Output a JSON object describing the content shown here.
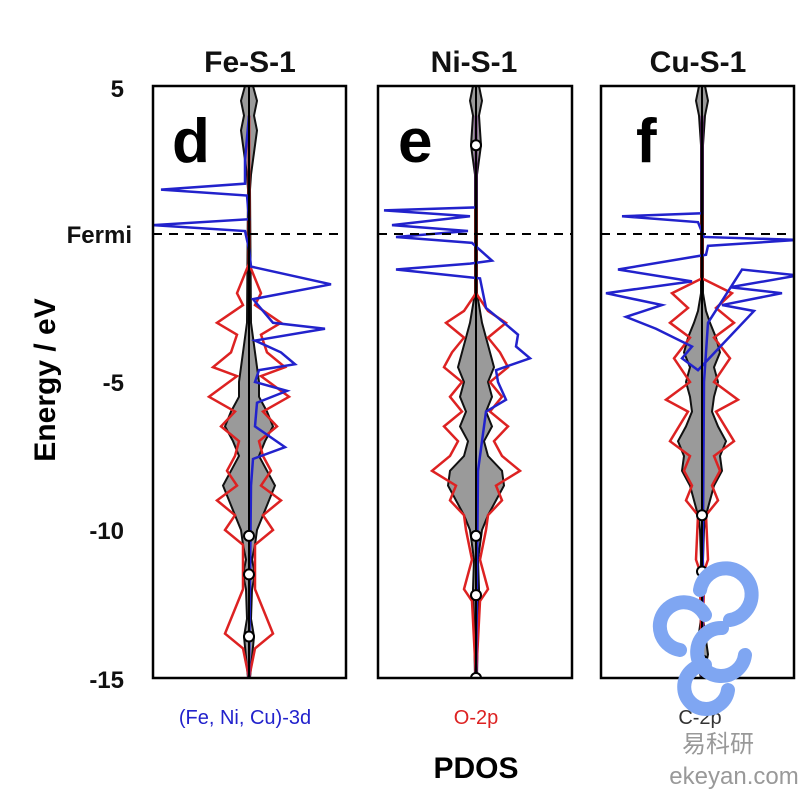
{
  "chart_data": {
    "type": "line",
    "ylabel": "Energy / eV",
    "xlabel": "PDOS",
    "ylim": [
      -15,
      5
    ],
    "yticks": [
      5,
      -5,
      -10,
      -15
    ],
    "fermi_label": "Fermi",
    "fermi_energy": 0,
    "series_legend": [
      {
        "name": "(Fe, Ni, Cu)-3d",
        "color": "#2222cc"
      },
      {
        "name": "O-2p",
        "color": "#dd2222"
      },
      {
        "name": "C-2p",
        "color": "#333333"
      }
    ],
    "panels": [
      {
        "title": "Fe-S-1",
        "letter": "d",
        "d3": [
          [
            4,
            0
          ],
          [
            2.5,
            -0.2
          ],
          [
            1.7,
            -0.2
          ],
          [
            1.5,
            -4.4
          ],
          [
            1.3,
            -0.1
          ],
          [
            0.5,
            0
          ],
          [
            0.3,
            -4.8
          ],
          [
            0.1,
            -0.2
          ],
          [
            -0.5,
            0
          ],
          [
            -1.1,
            0.1
          ],
          [
            -1.7,
            4.1
          ],
          [
            -2.2,
            0.2
          ],
          [
            -3,
            1.2
          ],
          [
            -3.2,
            3.8
          ],
          [
            -3.6,
            0.3
          ],
          [
            -4,
            1.6
          ],
          [
            -4.4,
            2.3
          ],
          [
            -4.6,
            0.5
          ],
          [
            -5,
            0.3
          ],
          [
            -5.3,
            1.9
          ],
          [
            -5.7,
            0.4
          ],
          [
            -6.5,
            0.3
          ],
          [
            -7.2,
            1.8
          ],
          [
            -7.6,
            0.2
          ],
          [
            -8.5,
            0.1
          ],
          [
            -15,
            0
          ]
        ],
        "o2p": [
          [
            4,
            0
          ],
          [
            -1,
            0
          ],
          [
            -2,
            0.6
          ],
          [
            -2.4,
            0.3
          ],
          [
            -3,
            1.6
          ],
          [
            -3.4,
            0.6
          ],
          [
            -4,
            0.9
          ],
          [
            -4.5,
            1.8
          ],
          [
            -4.8,
            0.6
          ],
          [
            -5,
            1.0
          ],
          [
            -5.5,
            2.0
          ],
          [
            -6,
            0.7
          ],
          [
            -6.5,
            1.4
          ],
          [
            -7,
            0.5
          ],
          [
            -7.5,
            0.7
          ],
          [
            -8,
            1.1
          ],
          [
            -8.5,
            0.6
          ],
          [
            -9,
            1.6
          ],
          [
            -9.5,
            0.7
          ],
          [
            -10,
            1.2
          ],
          [
            -10.5,
            0.3
          ],
          [
            -12,
            0.3
          ],
          [
            -13.5,
            1.2
          ],
          [
            -14,
            0.3
          ],
          [
            -15,
            0
          ]
        ],
        "c2p": [
          [
            5,
            0.2
          ],
          [
            4.5,
            0.4
          ],
          [
            4,
            0.25
          ],
          [
            3.5,
            0.4
          ],
          [
            3,
            0.3
          ],
          [
            2.5,
            0.2
          ],
          [
            2,
            0.1
          ],
          [
            1.5,
            0.05
          ],
          [
            -3,
            0.1
          ],
          [
            -4,
            0.3
          ],
          [
            -5,
            0.5
          ],
          [
            -5.5,
            0.5
          ],
          [
            -6,
            0.9
          ],
          [
            -6.5,
            1.2
          ],
          [
            -7,
            0.8
          ],
          [
            -7.5,
            0.5
          ],
          [
            -8,
            0.9
          ],
          [
            -8.5,
            1.3
          ],
          [
            -9,
            1.0
          ],
          [
            -9.5,
            0.7
          ],
          [
            -10,
            0.4
          ],
          [
            -10.5,
            0.3
          ],
          [
            -11,
            0.15
          ],
          [
            -11.5,
            0.3
          ],
          [
            -12,
            0.15
          ],
          [
            -13,
            0.1
          ],
          [
            -13.6,
            0.25
          ],
          [
            -15,
            0.05
          ]
        ],
        "c2p_markers": [
          -10.2,
          -11.5,
          -13.6
        ]
      },
      {
        "title": "Ni-S-1",
        "letter": "e",
        "d3": [
          [
            4,
            0
          ],
          [
            0.9,
            0
          ],
          [
            0.8,
            -4.6
          ],
          [
            0.6,
            -0.3
          ],
          [
            0.3,
            -4.2
          ],
          [
            0.1,
            -0.4
          ],
          [
            -0.1,
            -4.0
          ],
          [
            -0.3,
            -0.2
          ],
          [
            -0.9,
            0.8
          ],
          [
            -1,
            -0.3
          ],
          [
            -1.2,
            -4.0
          ],
          [
            -1.5,
            0.2
          ],
          [
            -2.5,
            0.5
          ],
          [
            -3,
            1.4
          ],
          [
            -3.4,
            2.1
          ],
          [
            -3.8,
            2.0
          ],
          [
            -4.2,
            2.7
          ],
          [
            -4.6,
            1.0
          ],
          [
            -5,
            1.1
          ],
          [
            -5.6,
            1.5
          ],
          [
            -6,
            0.5
          ],
          [
            -7,
            0.3
          ],
          [
            -8,
            0.1
          ],
          [
            -15,
            0
          ]
        ],
        "o2p": [
          [
            4,
            0
          ],
          [
            -2,
            0
          ],
          [
            -2.6,
            0.6
          ],
          [
            -3,
            1.5
          ],
          [
            -3.5,
            0.6
          ],
          [
            -4,
            1.2
          ],
          [
            -4.5,
            1.6
          ],
          [
            -5,
            0.7
          ],
          [
            -5.5,
            1.3
          ],
          [
            -6,
            0.7
          ],
          [
            -6.5,
            1.6
          ],
          [
            -7,
            0.9
          ],
          [
            -7.5,
            1.3
          ],
          [
            -8,
            2.2
          ],
          [
            -8.5,
            1.0
          ],
          [
            -9,
            1.3
          ],
          [
            -9.5,
            0.6
          ],
          [
            -10,
            0.5
          ],
          [
            -11,
            0.2
          ],
          [
            -12,
            0.6
          ],
          [
            -12.4,
            0.2
          ],
          [
            -15,
            0
          ]
        ],
        "c2p": [
          [
            5,
            0.15
          ],
          [
            4.5,
            0.3
          ],
          [
            4,
            0.15
          ],
          [
            3.5,
            0.2
          ],
          [
            3,
            0.25
          ],
          [
            2.5,
            0.15
          ],
          [
            2,
            0.05
          ],
          [
            -2,
            0.05
          ],
          [
            -3,
            0.3
          ],
          [
            -3.5,
            0.5
          ],
          [
            -4,
            0.7
          ],
          [
            -4.5,
            0.9
          ],
          [
            -5,
            0.6
          ],
          [
            -5.5,
            0.8
          ],
          [
            -6,
            0.5
          ],
          [
            -6.5,
            0.8
          ],
          [
            -7,
            0.4
          ],
          [
            -7.5,
            0.6
          ],
          [
            -8,
            1.3
          ],
          [
            -8.5,
            1.4
          ],
          [
            -9,
            1.0
          ],
          [
            -9.5,
            0.6
          ],
          [
            -10,
            0.3
          ],
          [
            -10.5,
            0.2
          ],
          [
            -11,
            0.1
          ],
          [
            -12,
            0.15
          ],
          [
            -13,
            0.1
          ],
          [
            -15,
            0.05
          ]
        ],
        "c2p_markers": [
          3,
          -10.2,
          -12.2,
          -15
        ]
      },
      {
        "title": "Cu-S-1",
        "letter": "f",
        "d3": [
          [
            4,
            0
          ],
          [
            0.7,
            0
          ],
          [
            0.6,
            -4.0
          ],
          [
            0.4,
            -0.2
          ],
          [
            -0.1,
            0.1
          ],
          [
            -0.2,
            4.8
          ],
          [
            -0.4,
            0.3
          ],
          [
            -0.7,
            0.2
          ],
          [
            -1.2,
            -4.2
          ],
          [
            -1.6,
            -0.5
          ],
          [
            -2,
            -4.8
          ],
          [
            -2.4,
            -2.0
          ],
          [
            -2.8,
            -3.8
          ],
          [
            -3.2,
            -2.3
          ],
          [
            -3.8,
            -0.5
          ],
          [
            -4.2,
            -1.0
          ],
          [
            -4.6,
            -0.2
          ],
          [
            -2.6,
            2.6
          ],
          [
            -2.4,
            1.0
          ],
          [
            -2,
            4.0
          ],
          [
            -1.8,
            1.4
          ],
          [
            -1.4,
            4.8
          ],
          [
            -1.2,
            2.0
          ],
          [
            -3,
            0.3
          ],
          [
            -5,
            0.1
          ],
          [
            -15,
            0
          ]
        ],
        "o2p": [
          [
            4,
            0
          ],
          [
            -1.5,
            0
          ],
          [
            -2,
            -1.5
          ],
          [
            -2.5,
            -0.7
          ],
          [
            -3,
            -1.6
          ],
          [
            -3.5,
            -0.6
          ],
          [
            -4.2,
            -1.4
          ],
          [
            -5,
            -0.6
          ],
          [
            -5.6,
            -1.8
          ],
          [
            -6,
            -0.7
          ],
          [
            -7,
            -1.6
          ],
          [
            -7.5,
            -0.6
          ],
          [
            -8,
            -0.9
          ],
          [
            -8.5,
            -0.5
          ],
          [
            -9,
            -0.8
          ],
          [
            -9.5,
            -0.2
          ],
          [
            -11,
            -0.3
          ],
          [
            -11.4,
            -0.1
          ],
          [
            -15,
            0
          ]
        ],
        "c2p": [
          [
            5,
            0.15
          ],
          [
            4.5,
            0.3
          ],
          [
            4,
            0.15
          ],
          [
            3,
            0.05
          ],
          [
            -2,
            0.05
          ],
          [
            -2.6,
            0.2
          ],
          [
            -3,
            0.4
          ],
          [
            -3.5,
            0.7
          ],
          [
            -4,
            0.9
          ],
          [
            -4.5,
            0.6
          ],
          [
            -5,
            0.8
          ],
          [
            -5.5,
            0.6
          ],
          [
            -6,
            0.5
          ],
          [
            -6.5,
            0.8
          ],
          [
            -7,
            1.2
          ],
          [
            -7.5,
            0.9
          ],
          [
            -8,
            1.0
          ],
          [
            -8.5,
            0.6
          ],
          [
            -9,
            0.4
          ],
          [
            -9.5,
            0.2
          ],
          [
            -10,
            0.1
          ],
          [
            -11,
            0.05
          ],
          [
            -12,
            0.1
          ],
          [
            -13,
            0.05
          ],
          [
            -14.2,
            0.3
          ],
          [
            -15,
            0.05
          ]
        ],
        "c2p_markers": [
          -9.5,
          -11.4,
          -14.4
        ]
      }
    ]
  },
  "watermark": {
    "brand": "易科研",
    "url": "ekeyan.com",
    "color": "#7fa6f2"
  }
}
